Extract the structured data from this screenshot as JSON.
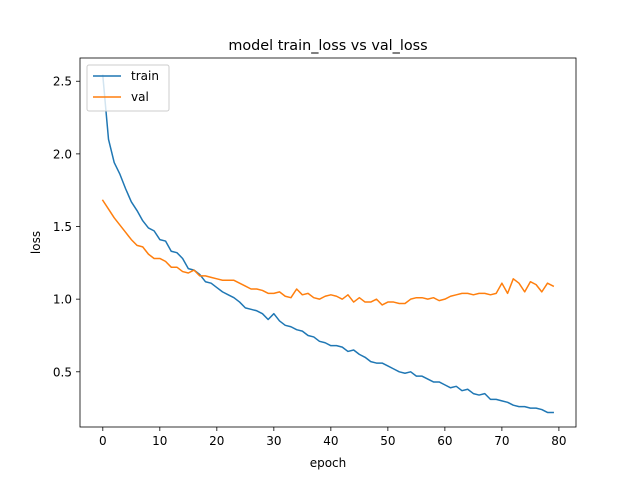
{
  "chart_data": {
    "type": "line",
    "title": "model train_loss vs val_loss",
    "xlabel": "epoch",
    "ylabel": "loss",
    "xlim": [
      -4,
      83
    ],
    "ylim": [
      0.12,
      2.66
    ],
    "xticks": [
      0,
      10,
      20,
      30,
      40,
      50,
      60,
      70,
      80
    ],
    "yticks": [
      0.5,
      1.0,
      1.5,
      2.0,
      2.5
    ],
    "grid": false,
    "legend_position": "upper-left",
    "colors": {
      "train": "#1f77b4",
      "val": "#ff7f0e"
    },
    "x": [
      0,
      1,
      2,
      3,
      4,
      5,
      6,
      7,
      8,
      9,
      10,
      11,
      12,
      13,
      14,
      15,
      16,
      17,
      18,
      19,
      20,
      21,
      22,
      23,
      24,
      25,
      26,
      27,
      28,
      29,
      30,
      31,
      32,
      33,
      34,
      35,
      36,
      37,
      38,
      39,
      40,
      41,
      42,
      43,
      44,
      45,
      46,
      47,
      48,
      49,
      50,
      51,
      52,
      53,
      54,
      55,
      56,
      57,
      58,
      59,
      60,
      61,
      62,
      63,
      64,
      65,
      66,
      67,
      68,
      69,
      70,
      71,
      72,
      73,
      74,
      75,
      76,
      77,
      78,
      79
    ],
    "series": [
      {
        "name": "train",
        "values": [
          2.54,
          2.1,
          1.94,
          1.86,
          1.76,
          1.67,
          1.61,
          1.54,
          1.49,
          1.47,
          1.41,
          1.4,
          1.33,
          1.32,
          1.28,
          1.21,
          1.2,
          1.17,
          1.12,
          1.11,
          1.08,
          1.05,
          1.03,
          1.01,
          0.98,
          0.94,
          0.93,
          0.92,
          0.9,
          0.86,
          0.9,
          0.85,
          0.82,
          0.81,
          0.79,
          0.78,
          0.75,
          0.74,
          0.71,
          0.7,
          0.68,
          0.68,
          0.67,
          0.64,
          0.65,
          0.62,
          0.6,
          0.57,
          0.56,
          0.56,
          0.54,
          0.52,
          0.5,
          0.49,
          0.5,
          0.47,
          0.47,
          0.45,
          0.43,
          0.43,
          0.41,
          0.39,
          0.4,
          0.37,
          0.38,
          0.35,
          0.34,
          0.35,
          0.31,
          0.31,
          0.3,
          0.29,
          0.27,
          0.26,
          0.26,
          0.25,
          0.25,
          0.24,
          0.22,
          0.22
        ]
      },
      {
        "name": "val",
        "values": [
          1.68,
          1.62,
          1.56,
          1.51,
          1.46,
          1.41,
          1.37,
          1.36,
          1.31,
          1.28,
          1.28,
          1.26,
          1.22,
          1.22,
          1.19,
          1.18,
          1.2,
          1.16,
          1.16,
          1.15,
          1.14,
          1.13,
          1.13,
          1.13,
          1.11,
          1.09,
          1.07,
          1.07,
          1.06,
          1.04,
          1.04,
          1.05,
          1.02,
          1.01,
          1.07,
          1.03,
          1.04,
          1.01,
          1.0,
          1.02,
          1.03,
          1.02,
          1.0,
          1.03,
          0.98,
          1.01,
          0.98,
          0.98,
          1.0,
          0.96,
          0.98,
          0.98,
          0.97,
          0.97,
          1.0,
          1.01,
          1.01,
          1.0,
          1.01,
          0.99,
          1.0,
          1.02,
          1.03,
          1.04,
          1.04,
          1.03,
          1.04,
          1.04,
          1.03,
          1.04,
          1.11,
          1.04,
          1.14,
          1.11,
          1.05,
          1.12,
          1.1,
          1.05,
          1.11,
          1.09
        ]
      }
    ]
  }
}
